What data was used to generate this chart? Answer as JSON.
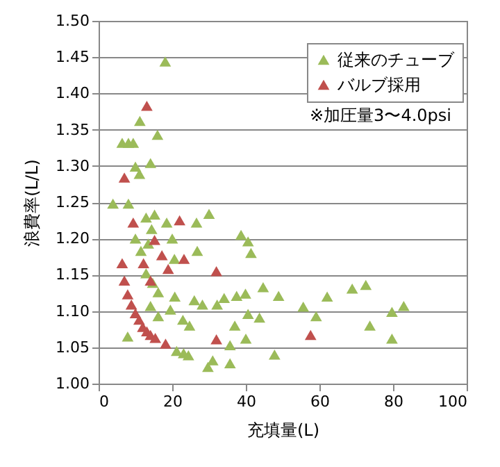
{
  "chart_data": {
    "type": "scatter",
    "xlabel": "充填量(L)",
    "ylabel": "浪費率(L/L)",
    "annotations": [
      "※加圧量3〜4.0psi"
    ],
    "xlim": [
      0,
      100
    ],
    "xticks": [
      0,
      20,
      40,
      60,
      80,
      100
    ],
    "ylim": [
      1,
      1.5
    ],
    "yticks": [
      {
        "value": 1,
        "label": "1.00"
      },
      {
        "value": 1.05,
        "label": "1.05"
      },
      {
        "value": 1.1,
        "label": "1.10"
      },
      {
        "value": 1.15,
        "label": "1.15"
      },
      {
        "value": 1.2,
        "label": "1.20"
      },
      {
        "value": 1.25,
        "label": "1.25"
      },
      {
        "value": 1.3,
        "label": "1.30"
      },
      {
        "value": 1.35,
        "label": "1.35"
      },
      {
        "value": 1.4,
        "label": "1.40"
      },
      {
        "value": 1.45,
        "label": "1.45"
      },
      {
        "value": 1.5,
        "label": "1.50"
      }
    ],
    "grid": "y",
    "legend": "top right",
    "marker": "triangle",
    "series": [
      {
        "name": "従来のチューブ",
        "color": "#9bbb59",
        "x": [
          18.1,
          11.2,
          16.0,
          6.4,
          8.1,
          9.4,
          10.0,
          11.1,
          14.1,
          3.9,
          8.1,
          12.9,
          15.2,
          14.4,
          18.5,
          26.6,
          30.0,
          10.0,
          11.5,
          13.5,
          20.0,
          20.6,
          26.8,
          12.9,
          14.7,
          16.2,
          20.7,
          14.1,
          19.5,
          16.2,
          22.9,
          24.7,
          26.0,
          28.2,
          7.9,
          21.2,
          23.1,
          24.4,
          29.7,
          38.7,
          40.6,
          41.4,
          44.7,
          48.9,
          39.9,
          37.5,
          34.1,
          32.2,
          40.6,
          43.7,
          37.0,
          40.0,
          35.7,
          31.0,
          35.7,
          47.8,
          55.6,
          59.1,
          62.1,
          68.9,
          72.6,
          73.7,
          79.7,
          82.9,
          79.7
        ],
        "values": [
          1.444,
          1.362,
          1.343,
          1.332,
          1.332,
          1.332,
          1.299,
          1.289,
          1.304,
          1.248,
          1.248,
          1.229,
          1.233,
          1.213,
          1.222,
          1.222,
          1.234,
          1.2,
          1.183,
          1.193,
          1.2,
          1.172,
          1.183,
          1.152,
          1.139,
          1.126,
          1.12,
          1.107,
          1.102,
          1.093,
          1.088,
          1.08,
          1.115,
          1.109,
          1.065,
          1.045,
          1.042,
          1.039,
          1.023,
          1.205,
          1.196,
          1.18,
          1.133,
          1.121,
          1.124,
          1.121,
          1.118,
          1.109,
          1.096,
          1.091,
          1.08,
          1.062,
          1.053,
          1.032,
          1.028,
          1.04,
          1.106,
          1.093,
          1.12,
          1.131,
          1.136,
          1.08,
          1.099,
          1.107,
          1.062
        ]
      },
      {
        "name": "バルブ採用",
        "color": "#c0504d",
        "x": [
          13.1,
          7.0,
          9.4,
          22.0,
          15.2,
          17.2,
          23.2,
          6.4,
          12.2,
          18.9,
          7.0,
          14.1,
          7.9,
          8.9,
          10.0,
          11.0,
          12.0,
          13.1,
          14.1,
          15.4,
          18.2,
          32.0,
          32.0,
          57.6
        ],
        "values": [
          1.383,
          1.284,
          1.222,
          1.225,
          1.198,
          1.177,
          1.172,
          1.166,
          1.166,
          1.158,
          1.142,
          1.142,
          1.123,
          1.109,
          1.097,
          1.088,
          1.078,
          1.072,
          1.067,
          1.063,
          1.055,
          1.155,
          1.061,
          1.067
        ]
      }
    ]
  }
}
